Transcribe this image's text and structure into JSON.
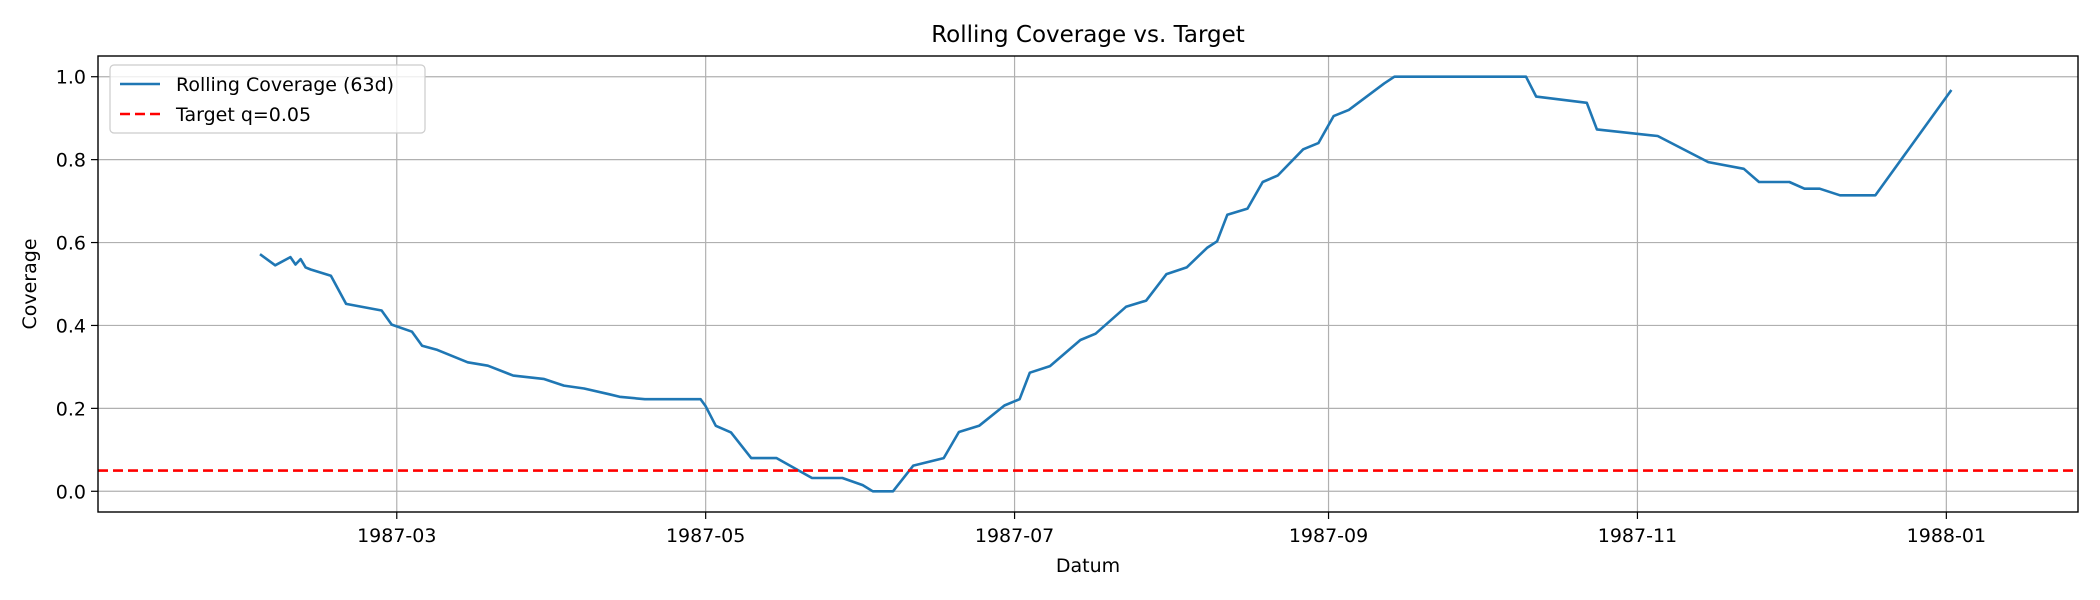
{
  "chart_data": {
    "type": "line",
    "title": "Rolling Coverage vs. Target",
    "xlabel": "Datum",
    "ylabel": "Coverage",
    "xlim": [
      "1987-01-01",
      "1988-01-27"
    ],
    "ylim": [
      -0.05,
      1.05
    ],
    "grid": true,
    "legend_position": "top-left",
    "x_ticks": [
      "1987-03",
      "1987-05",
      "1987-07",
      "1987-09",
      "1987-11",
      "1988-01"
    ],
    "y_ticks": [
      "0.0",
      "0.2",
      "0.4",
      "0.6",
      "0.8",
      "1.0"
    ],
    "series": [
      {
        "name": "Rolling Coverage (63d)",
        "color": "#1f77b4",
        "style": "solid",
        "x": [
          "1987-02-02",
          "1987-02-05",
          "1987-02-08",
          "1987-02-09",
          "1987-02-10",
          "1987-02-11",
          "1987-02-12",
          "1987-02-16",
          "1987-02-19",
          "1987-02-26",
          "1987-02-28",
          "1987-03-04",
          "1987-03-06",
          "1987-03-09",
          "1987-03-15",
          "1987-03-19",
          "1987-03-24",
          "1987-03-30",
          "1987-04-03",
          "1987-04-07",
          "1987-04-12",
          "1987-04-14",
          "1987-04-19",
          "1987-04-25",
          "1987-04-30",
          "1987-05-01",
          "1987-05-03",
          "1987-05-06",
          "1987-05-10",
          "1987-05-15",
          "1987-05-22",
          "1987-05-28",
          "1987-06-01",
          "1987-06-03",
          "1987-06-07",
          "1987-06-11",
          "1987-06-17",
          "1987-06-20",
          "1987-06-24",
          "1987-06-29",
          "1987-07-02",
          "1987-07-04",
          "1987-07-08",
          "1987-07-14",
          "1987-07-17",
          "1987-07-23",
          "1987-07-27",
          "1987-07-31",
          "1987-08-04",
          "1987-08-08",
          "1987-08-10",
          "1987-08-12",
          "1987-08-16",
          "1987-08-19",
          "1987-08-22",
          "1987-08-27",
          "1987-08-30",
          "1987-09-02",
          "1987-09-05",
          "1987-09-12",
          "1987-09-14",
          "1987-09-20",
          "1987-10-10",
          "1987-10-12",
          "1987-10-22",
          "1987-10-24",
          "1987-11-05",
          "1987-11-15",
          "1987-11-22",
          "1987-11-25",
          "1987-11-29",
          "1987-12-01",
          "1987-12-04",
          "1987-12-07",
          "1987-12-11",
          "1987-12-15",
          "1987-12-18",
          "1988-01-02"
        ],
        "y": [
          0.572,
          0.545,
          0.565,
          0.547,
          0.56,
          0.54,
          0.535,
          0.52,
          0.452,
          0.436,
          0.402,
          0.385,
          0.351,
          0.341,
          0.311,
          0.303,
          0.279,
          0.271,
          0.255,
          0.248,
          0.234,
          0.228,
          0.222,
          0.222,
          0.222,
          0.205,
          0.158,
          0.142,
          0.08,
          0.08,
          0.032,
          0.032,
          0.015,
          0.0,
          0.0,
          0.062,
          0.08,
          0.143,
          0.158,
          0.207,
          0.222,
          0.286,
          0.302,
          0.365,
          0.38,
          0.445,
          0.46,
          0.524,
          0.54,
          0.587,
          0.603,
          0.667,
          0.682,
          0.746,
          0.762,
          0.825,
          0.84,
          0.905,
          0.92,
          0.984,
          1.0,
          1.0,
          1.0,
          0.952,
          0.937,
          0.873,
          0.857,
          0.794,
          0.778,
          0.746,
          0.746,
          0.746,
          0.73,
          0.73,
          0.714,
          0.714,
          0.714,
          0.968
        ]
      },
      {
        "name": "Target q=0.05",
        "color": "#ff0000",
        "style": "dashed",
        "value": 0.05
      }
    ]
  }
}
